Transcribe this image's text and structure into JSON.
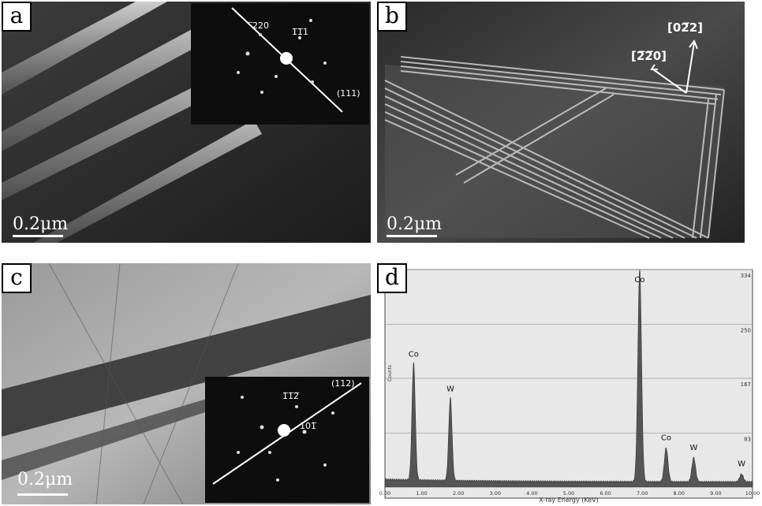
{
  "panels": {
    "a": {
      "label": "a",
      "scale": "0.2μm",
      "inset_labels": [
        "̅220",
        "1̅1̅1",
        "(111)"
      ]
    },
    "b": {
      "label": "b",
      "scale": "0.2μm",
      "dir1": "[2̅2̅0]",
      "dir2": "[02̅2]"
    },
    "c": {
      "label": "c",
      "scale": "0.2μm",
      "inset_labels": [
        "(112)",
        "1̅1̅2̅",
        "101̅"
      ]
    },
    "d": {
      "label": "d"
    }
  },
  "chart_data": {
    "type": "line",
    "title": "",
    "xlabel": "X-ray Energy (KeV)",
    "ylabel": "Counts",
    "xlim": [
      0,
      10
    ],
    "ylim": [
      0,
      334
    ],
    "x_ticks": [
      "0.00",
      "1.00",
      "2.00",
      "3.00",
      "4.00",
      "5.00",
      "6.00",
      "7.00",
      "8.00",
      "9.00",
      "10.00"
    ],
    "y_ticks": [
      "334",
      "250",
      "167",
      "83"
    ],
    "peaks": [
      {
        "label": "Co",
        "x": 0.78,
        "y": 188
      },
      {
        "label": "W",
        "x": 1.78,
        "y": 135
      },
      {
        "label": "Co",
        "x": 6.93,
        "y": 334
      },
      {
        "label": "Co",
        "x": 7.65,
        "y": 60
      },
      {
        "label": "W",
        "x": 8.4,
        "y": 45
      },
      {
        "label": "W",
        "x": 9.7,
        "y": 20
      }
    ],
    "peak_labels": [
      "Co",
      "W",
      "Co",
      "Co",
      "W",
      "W"
    ]
  }
}
